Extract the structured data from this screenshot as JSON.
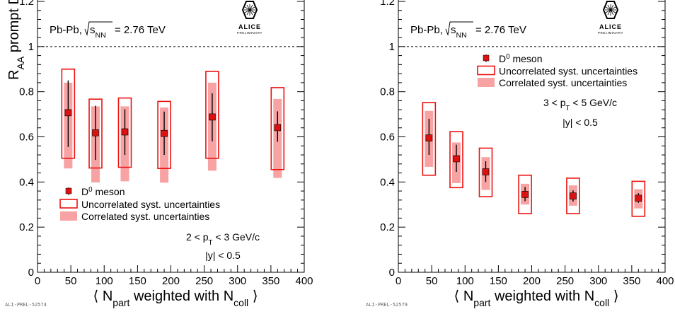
{
  "chart_data": [
    {
      "type": "scatter",
      "ylabel": "R_AA prompt D",
      "xlabel": "⟨ N_part weighted with N_coll ⟩",
      "xlim": [
        0,
        400
      ],
      "ylim": [
        0,
        1.2
      ],
      "xticks": [
        0,
        50,
        100,
        150,
        200,
        250,
        300,
        350,
        400
      ],
      "yticks": [
        0,
        0.2,
        0.4,
        0.6,
        0.8,
        1
      ],
      "yticks_text": [
        "0",
        "0.2",
        "0.4",
        "0.6",
        "0.8",
        "1"
      ],
      "reference_line": 1,
      "system_label": "Pb-Pb, √s_NN = 2.76 TeV",
      "logo": "ALICE",
      "logo_sub": "PRELIMINARY",
      "legend": {
        "entries": [
          "D⁰ meson",
          "Uncorrelated syst. uncertainties",
          "Correlated syst. uncertainties"
        ],
        "placement": "bottom-left"
      },
      "annotations": [
        "2 < p_T < 3 GeV/c",
        "|y| < 0.5"
      ],
      "footer": "ALI-PREL-52574",
      "series": [
        {
          "name": "D⁰ meson",
          "points": [
            {
              "x": 46,
              "y": 0.707,
              "stat": [
                0.555,
                0.85
              ],
              "uncorr": [
                0.505,
                0.9
              ],
              "corr": [
                0.46,
                0.84
              ]
            },
            {
              "x": 87,
              "y": 0.618,
              "stat": [
                0.498,
                0.738
              ],
              "uncorr": [
                0.462,
                0.767
              ],
              "corr": [
                0.398,
                0.735
              ]
            },
            {
              "x": 131,
              "y": 0.622,
              "stat": [
                0.52,
                0.722
              ],
              "uncorr": [
                0.465,
                0.772
              ],
              "corr": [
                0.403,
                0.735
              ]
            },
            {
              "x": 190,
              "y": 0.615,
              "stat": [
                0.52,
                0.712
              ],
              "uncorr": [
                0.46,
                0.757
              ],
              "corr": [
                0.397,
                0.73
              ]
            },
            {
              "x": 262,
              "y": 0.688,
              "stat": [
                0.58,
                0.793
              ],
              "uncorr": [
                0.505,
                0.89
              ],
              "corr": [
                0.45,
                0.84
              ]
            },
            {
              "x": 360,
              "y": 0.641,
              "stat": [
                0.578,
                0.713
              ],
              "uncorr": [
                0.455,
                0.818
              ],
              "corr": [
                0.418,
                0.768
              ]
            }
          ]
        }
      ]
    },
    {
      "type": "scatter",
      "ylabel": "R_AA prompt D",
      "xlabel": "⟨ N_part weighted with N_coll ⟩",
      "xlim": [
        0,
        400
      ],
      "ylim": [
        0,
        1.2
      ],
      "xticks": [
        0,
        50,
        100,
        150,
        200,
        250,
        300,
        350,
        400
      ],
      "yticks": [
        0,
        0.2,
        0.4,
        0.6,
        0.8,
        1
      ],
      "yticks_text": [
        "0",
        "0.2",
        "0.4",
        "0.6",
        "0.8",
        "1"
      ],
      "reference_line": 1,
      "system_label": "Pb-Pb, √s_NN = 2.76 TeV",
      "logo": "ALICE",
      "logo_sub": "PRELIMINARY",
      "legend": {
        "entries": [
          "D⁰ meson",
          "Uncorrelated syst. uncertainties",
          "Correlated syst. uncertainties"
        ],
        "placement": "top-right"
      },
      "annotations": [
        "3 < p_T < 5 GeV/c",
        "|y| < 0.5"
      ],
      "footer": "ALI-PREL-52579",
      "series": [
        {
          "name": "D⁰ meson",
          "points": [
            {
              "x": 46,
              "y": 0.595,
              "stat": [
                0.52,
                0.68
              ],
              "uncorr": [
                0.43,
                0.752
              ],
              "corr": [
                0.467,
                0.715
              ]
            },
            {
              "x": 87,
              "y": 0.503,
              "stat": [
                0.445,
                0.565
              ],
              "uncorr": [
                0.375,
                0.623
              ],
              "corr": [
                0.395,
                0.575
              ]
            },
            {
              "x": 131,
              "y": 0.445,
              "stat": [
                0.4,
                0.492
              ],
              "uncorr": [
                0.335,
                0.55
              ],
              "corr": [
                0.365,
                0.51
              ]
            },
            {
              "x": 190,
              "y": 0.345,
              "stat": [
                0.315,
                0.378
              ],
              "uncorr": [
                0.26,
                0.43
              ],
              "corr": [
                0.3,
                0.392
              ]
            },
            {
              "x": 262,
              "y": 0.338,
              "stat": [
                0.313,
                0.363
              ],
              "uncorr": [
                0.26,
                0.417
              ],
              "corr": [
                0.295,
                0.385
              ]
            },
            {
              "x": 360,
              "y": 0.328,
              "stat": [
                0.308,
                0.35
              ],
              "uncorr": [
                0.248,
                0.403
              ],
              "corr": [
                0.283,
                0.368
              ]
            }
          ]
        }
      ]
    }
  ],
  "colors": {
    "marker": "#dd1111",
    "uncorrelated_box": "#ee1111",
    "correlated_box": "#f7a3a3",
    "axis": "#000000"
  }
}
